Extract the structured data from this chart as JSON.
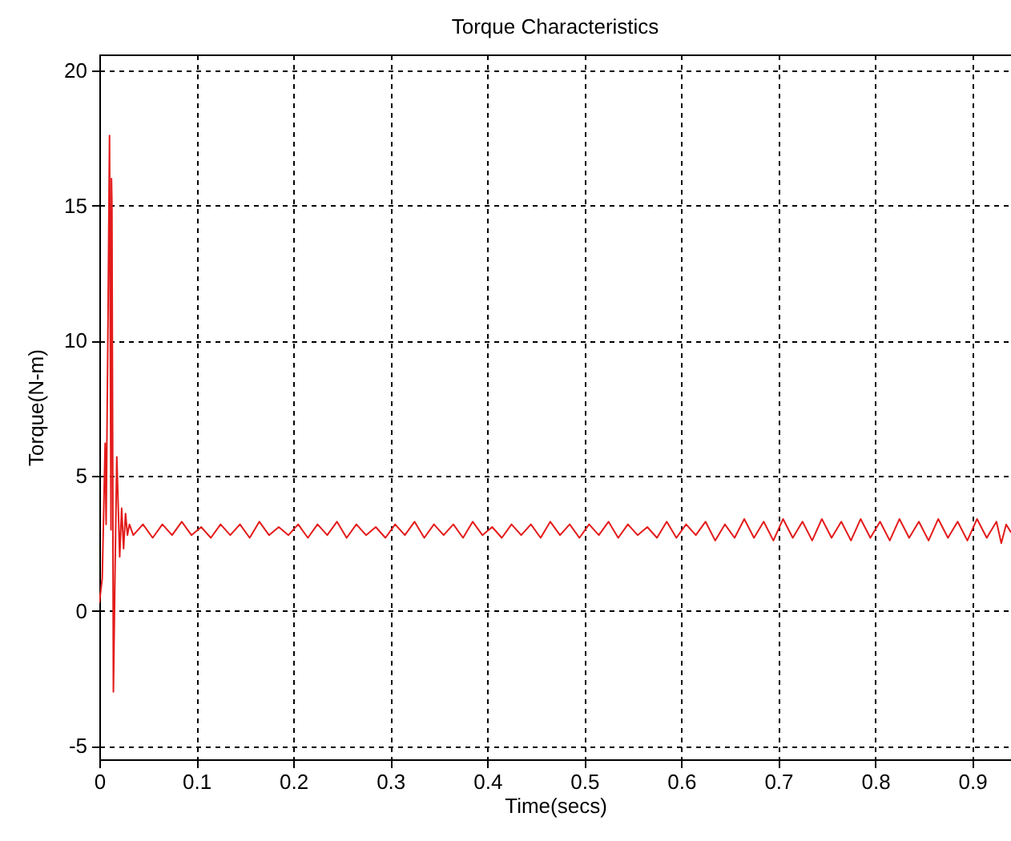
{
  "chart_data": {
    "type": "line",
    "title": "Torque Characteristics",
    "xlabel": "Time(secs)",
    "ylabel": "Torque(N-m)",
    "xlim": [
      0,
      0.94
    ],
    "ylim": [
      -5.5,
      20.6
    ],
    "xticks": [
      0,
      0.1,
      0.2,
      0.3,
      0.4,
      0.5,
      0.6,
      0.7,
      0.8,
      0.9
    ],
    "yticks": [
      -5,
      0,
      5,
      10,
      15,
      20
    ],
    "grid": true,
    "series": [
      {
        "color": "#e31b1b",
        "x": [
          0,
          0.003,
          0.006,
          0.007,
          0.009,
          0.0105,
          0.012,
          0.0125,
          0.013,
          0.0145,
          0.016,
          0.018,
          0.021,
          0.023,
          0.025,
          0.027,
          0.029,
          0.031,
          0.035,
          0.045,
          0.055,
          0.065,
          0.075,
          0.085,
          0.095,
          0.105,
          0.115,
          0.125,
          0.135,
          0.145,
          0.155,
          0.165,
          0.175,
          0.185,
          0.195,
          0.205,
          0.215,
          0.225,
          0.235,
          0.245,
          0.255,
          0.265,
          0.275,
          0.285,
          0.295,
          0.305,
          0.315,
          0.325,
          0.335,
          0.345,
          0.355,
          0.365,
          0.375,
          0.385,
          0.395,
          0.405,
          0.415,
          0.425,
          0.435,
          0.445,
          0.455,
          0.465,
          0.475,
          0.485,
          0.495,
          0.505,
          0.515,
          0.525,
          0.535,
          0.545,
          0.555,
          0.565,
          0.575,
          0.585,
          0.595,
          0.605,
          0.615,
          0.625,
          0.635,
          0.645,
          0.655,
          0.665,
          0.675,
          0.685,
          0.695,
          0.705,
          0.715,
          0.725,
          0.735,
          0.745,
          0.755,
          0.765,
          0.775,
          0.785,
          0.795,
          0.805,
          0.815,
          0.825,
          0.835,
          0.845,
          0.855,
          0.865,
          0.875,
          0.885,
          0.895,
          0.905,
          0.915,
          0.925,
          0.93,
          0.935,
          0.94
        ],
        "values": [
          0.3,
          1.2,
          6.2,
          3.2,
          11,
          17.6,
          3,
          16,
          15,
          -3,
          1,
          5.7,
          2,
          3.8,
          2.3,
          3.6,
          2.8,
          3.2,
          2.8,
          3.2,
          2.7,
          3.2,
          2.8,
          3.3,
          2.8,
          3.1,
          2.7,
          3.2,
          2.8,
          3.2,
          2.7,
          3.3,
          2.8,
          3.1,
          2.8,
          3.2,
          2.7,
          3.2,
          2.8,
          3.3,
          2.7,
          3.2,
          2.8,
          3.1,
          2.7,
          3.2,
          2.8,
          3.3,
          2.7,
          3.2,
          2.8,
          3.2,
          2.7,
          3.3,
          2.8,
          3.1,
          2.7,
          3.2,
          2.8,
          3.2,
          2.7,
          3.3,
          2.8,
          3.2,
          2.7,
          3.2,
          2.8,
          3.3,
          2.7,
          3.2,
          2.8,
          3.1,
          2.7,
          3.3,
          2.7,
          3.2,
          2.8,
          3.3,
          2.6,
          3.2,
          2.7,
          3.4,
          2.7,
          3.3,
          2.6,
          3.4,
          2.7,
          3.3,
          2.6,
          3.4,
          2.7,
          3.3,
          2.6,
          3.4,
          2.7,
          3.3,
          2.6,
          3.4,
          2.7,
          3.3,
          2.6,
          3.4,
          2.7,
          3.3,
          2.6,
          3.4,
          2.7,
          3.3,
          2.5,
          3.2,
          2.9
        ]
      }
    ]
  }
}
